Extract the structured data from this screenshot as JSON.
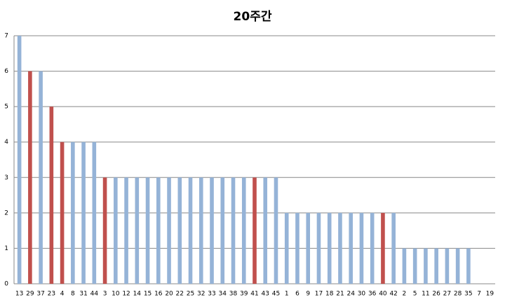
{
  "chart_data": {
    "type": "bar",
    "title": "20주간",
    "categories": [
      "13",
      "29",
      "37",
      "23",
      "4",
      "8",
      "31",
      "44",
      "3",
      "10",
      "12",
      "14",
      "15",
      "16",
      "20",
      "22",
      "25",
      "32",
      "33",
      "34",
      "38",
      "39",
      "41",
      "43",
      "45",
      "1",
      "6",
      "9",
      "17",
      "18",
      "21",
      "24",
      "30",
      "36",
      "40",
      "42",
      "2",
      "5",
      "11",
      "26",
      "27",
      "28",
      "35",
      "7",
      "19"
    ],
    "values": [
      7,
      6,
      6,
      5,
      4,
      4,
      4,
      4,
      3,
      3,
      3,
      3,
      3,
      3,
      3,
      3,
      3,
      3,
      3,
      3,
      3,
      3,
      3,
      3,
      3,
      2,
      2,
      2,
      2,
      2,
      2,
      2,
      2,
      2,
      2,
      2,
      1,
      1,
      1,
      1,
      1,
      1,
      1,
      0,
      0
    ],
    "colors": [
      "#95b3d7",
      "#c0504d",
      "#95b3d7",
      "#c0504d",
      "#c0504d",
      "#95b3d7",
      "#95b3d7",
      "#95b3d7",
      "#c0504d",
      "#95b3d7",
      "#95b3d7",
      "#95b3d7",
      "#95b3d7",
      "#95b3d7",
      "#95b3d7",
      "#95b3d7",
      "#95b3d7",
      "#95b3d7",
      "#95b3d7",
      "#95b3d7",
      "#95b3d7",
      "#95b3d7",
      "#c0504d",
      "#95b3d7",
      "#95b3d7",
      "#95b3d7",
      "#95b3d7",
      "#95b3d7",
      "#95b3d7",
      "#95b3d7",
      "#95b3d7",
      "#95b3d7",
      "#95b3d7",
      "#95b3d7",
      "#c0504d",
      "#95b3d7",
      "#95b3d7",
      "#95b3d7",
      "#95b3d7",
      "#95b3d7",
      "#95b3d7",
      "#95b3d7",
      "#95b3d7",
      "#95b3d7",
      "#95b3d7"
    ],
    "ylim": [
      0,
      7
    ],
    "yticks": [
      0,
      1,
      2,
      3,
      4,
      5,
      6,
      7
    ],
    "grid": true
  }
}
